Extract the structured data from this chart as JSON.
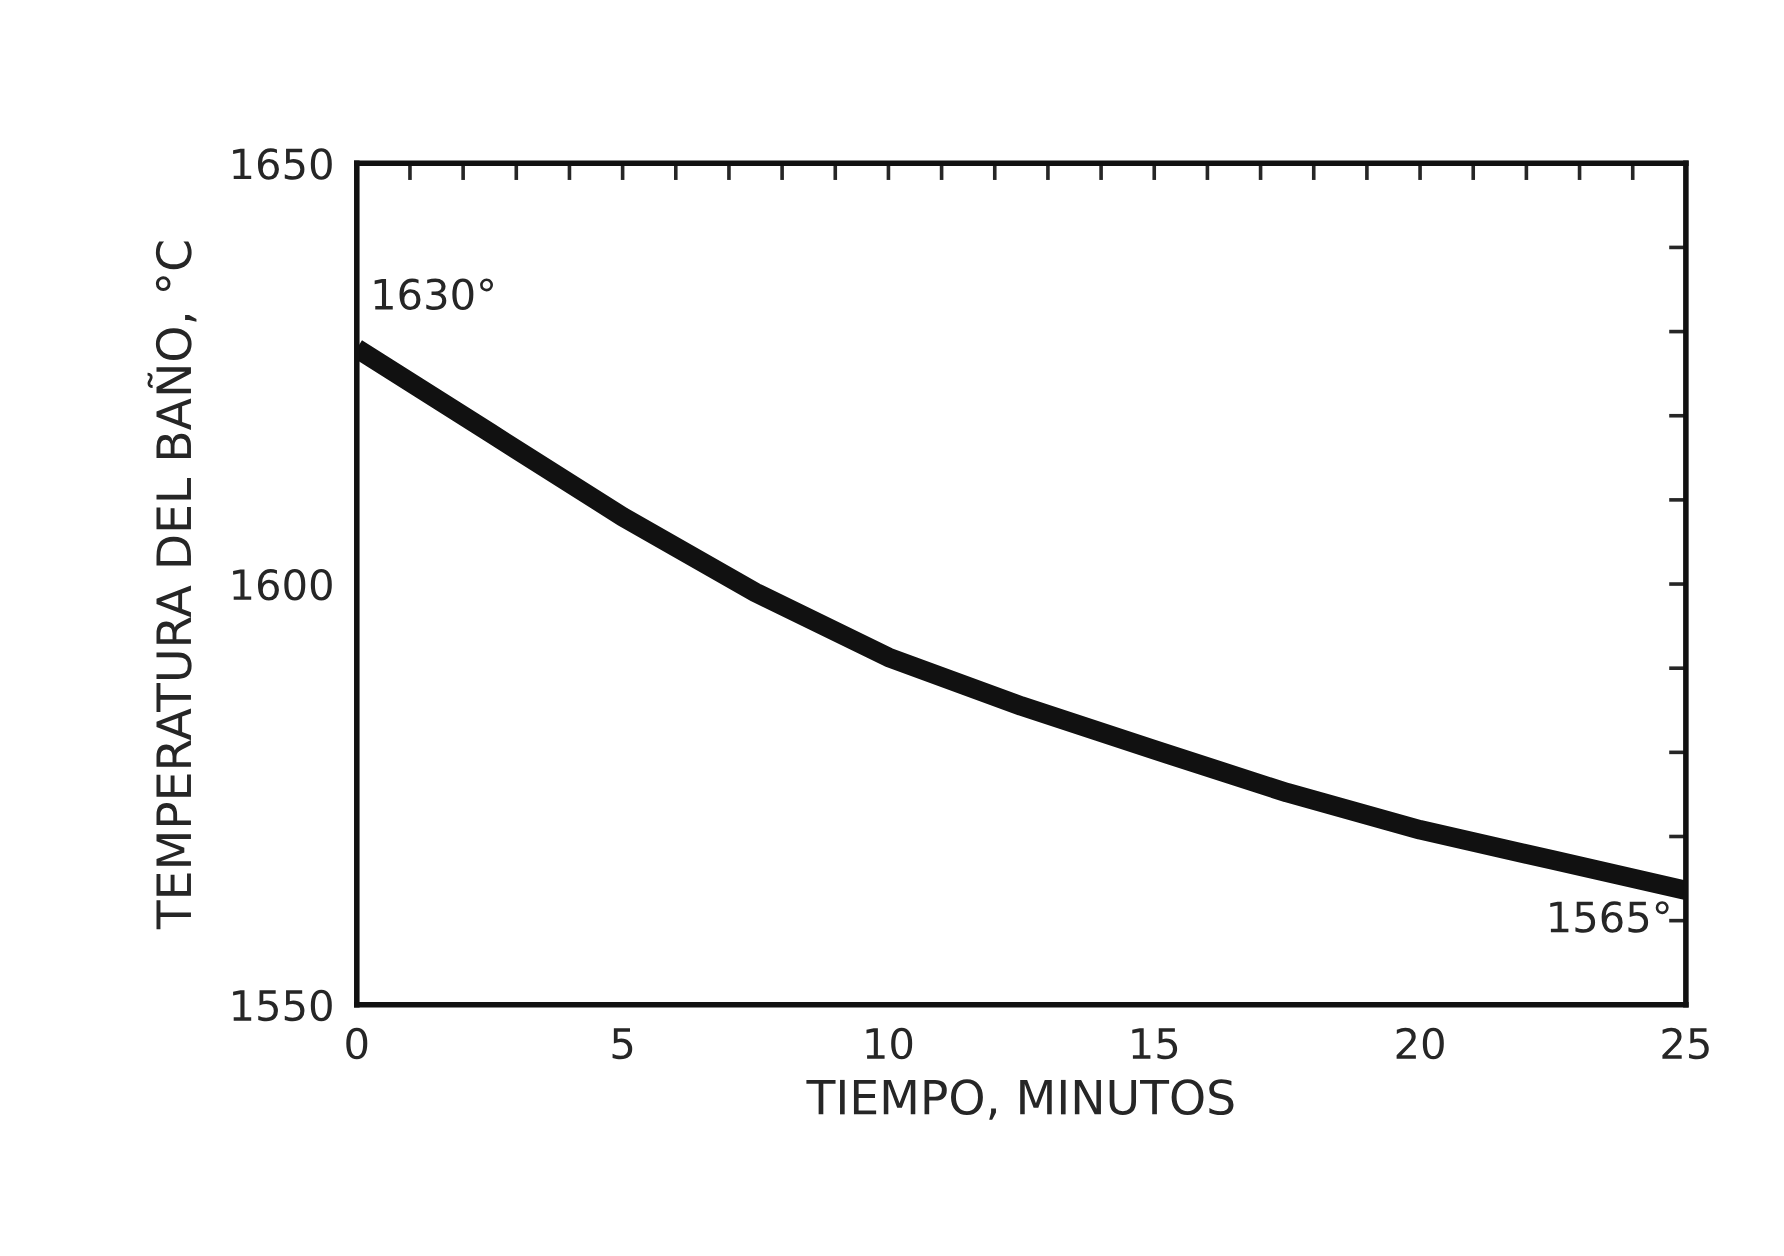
{
  "chart_data": {
    "type": "line",
    "xlabel": "TIEMPO, MINUTOS",
    "ylabel": "TEMPERATURA DEL BAÑO, °C",
    "x": [
      0,
      2.5,
      5,
      7.5,
      10,
      12.5,
      15,
      17.5,
      20,
      22.5,
      25
    ],
    "series": [
      {
        "color": "#111111",
        "values": [
          1628,
          1618,
          1608,
          1599,
          1591.3,
          1585.5,
          1580.3,
          1575.2,
          1570.8,
          1567.2,
          1563.6
        ]
      }
    ],
    "xlim": [
      0,
      25
    ],
    "ylim": [
      1550,
      1650
    ],
    "xticks": [
      0,
      {
        "value": 1,
        "label": null
      },
      {
        "value": 2,
        "label": null
      },
      {
        "value": 3,
        "label": null
      },
      {
        "value": 4,
        "label": null
      },
      5,
      {
        "value": 6,
        "label": null
      },
      {
        "value": 7,
        "label": null
      },
      {
        "value": 8,
        "label": null
      },
      {
        "value": 9,
        "label": null
      },
      10,
      {
        "value": 11,
        "label": null
      },
      {
        "value": 12,
        "label": null
      },
      {
        "value": 13,
        "label": null
      },
      {
        "value": 14,
        "label": null
      },
      15,
      {
        "value": 16,
        "label": null
      },
      {
        "value": 17,
        "label": null
      },
      {
        "value": 18,
        "label": null
      },
      {
        "value": 19,
        "label": null
      },
      20,
      {
        "value": 21,
        "label": null
      },
      {
        "value": 22,
        "label": null
      },
      {
        "value": 23,
        "label": null
      },
      {
        "value": 24,
        "label": null
      },
      25
    ],
    "yticks": [
      1550,
      {
        "value": 1560,
        "label": null
      },
      {
        "value": 1570,
        "label": null
      },
      {
        "value": 1580,
        "label": null
      },
      {
        "value": 1590,
        "label": null
      },
      1600,
      {
        "value": 1610,
        "label": null
      },
      {
        "value": 1620,
        "label": null
      },
      {
        "value": 1630,
        "label": null
      },
      {
        "value": 1640,
        "label": null
      },
      1650
    ],
    "annotations": [
      "1630°",
      "1565°"
    ],
    "grid": false,
    "legend": false,
    "marker": "none",
    "line_style": "solid"
  }
}
